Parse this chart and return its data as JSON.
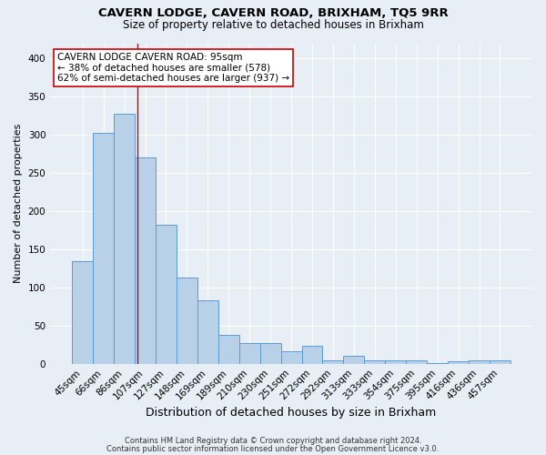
{
  "title": "CAVERN LODGE, CAVERN ROAD, BRIXHAM, TQ5 9RR",
  "subtitle": "Size of property relative to detached houses in Brixham",
  "xlabel": "Distribution of detached houses by size in Brixham",
  "ylabel": "Number of detached properties",
  "categories": [
    "45sqm",
    "66sqm",
    "86sqm",
    "107sqm",
    "127sqm",
    "148sqm",
    "169sqm",
    "189sqm",
    "210sqm",
    "230sqm",
    "251sqm",
    "272sqm",
    "292sqm",
    "313sqm",
    "333sqm",
    "354sqm",
    "375sqm",
    "395sqm",
    "416sqm",
    "436sqm",
    "457sqm"
  ],
  "values": [
    134,
    302,
    328,
    270,
    182,
    113,
    83,
    38,
    27,
    27,
    16,
    24,
    4,
    11,
    5,
    5,
    5,
    1,
    3,
    4,
    5
  ],
  "bar_color": "#b8d0e8",
  "bar_edge_color": "#5b9bd5",
  "background_color": "#e8eef5",
  "grid_color": "#ffffff",
  "red_line_x": 2.62,
  "annotation_line1": "CAVERN LODGE CAVERN ROAD: 95sqm",
  "annotation_line2": "← 38% of detached houses are smaller (578)",
  "annotation_line3": "62% of semi-detached houses are larger (937) →",
  "annotation_box_color": "#ffffff",
  "annotation_box_edge": "#cc0000",
  "footnote1": "Contains HM Land Registry data © Crown copyright and database right 2024.",
  "footnote2": "Contains public sector information licensed under the Open Government Licence v3.0.",
  "ylim": [
    0,
    420
  ],
  "yticks": [
    0,
    50,
    100,
    150,
    200,
    250,
    300,
    350,
    400
  ],
  "title_fontsize": 9.5,
  "subtitle_fontsize": 8.5,
  "xlabel_fontsize": 9,
  "ylabel_fontsize": 8,
  "tick_fontsize": 7.5,
  "annotation_fontsize": 7.5,
  "footnote_fontsize": 6
}
